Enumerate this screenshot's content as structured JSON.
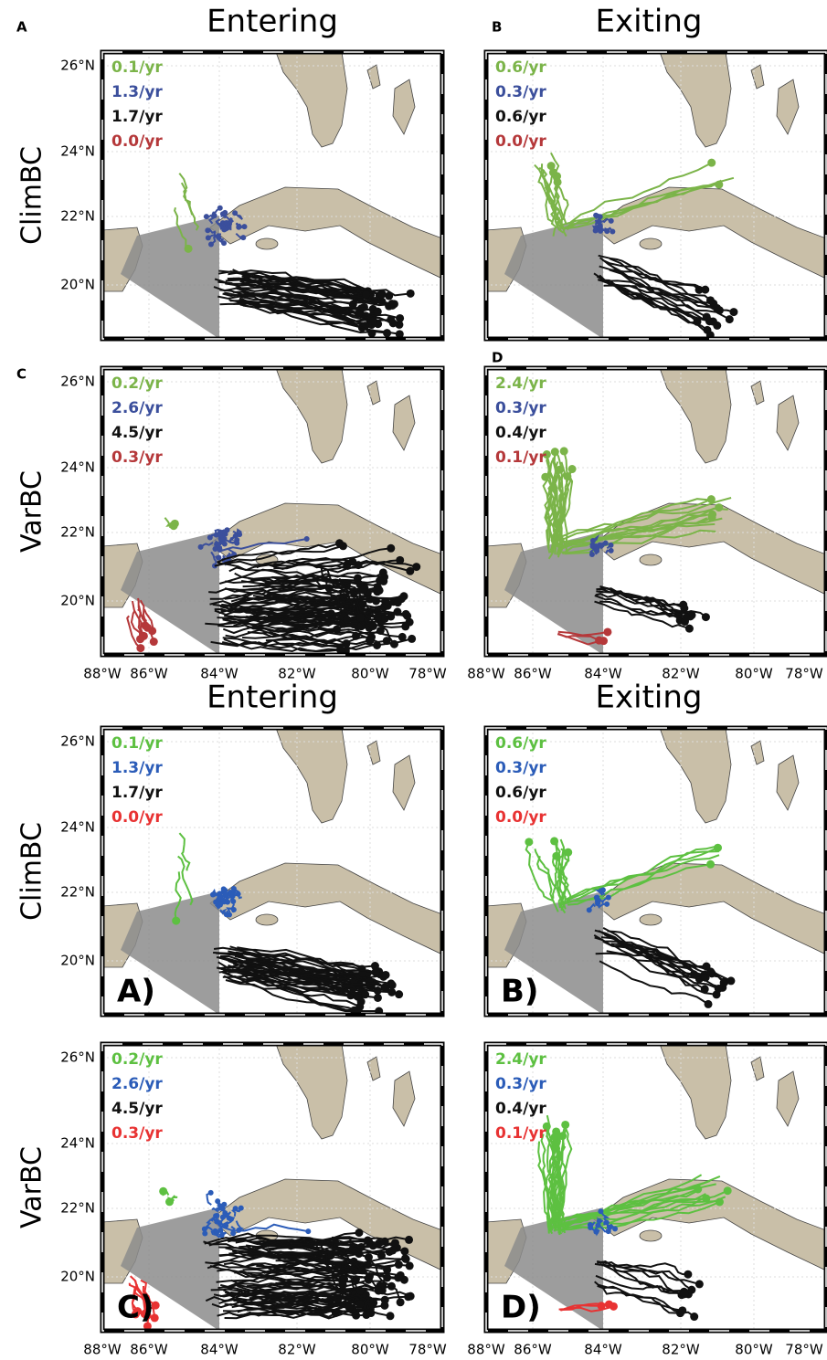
{
  "lat_labels": [
    "26°N",
    "24°N",
    "22°N",
    "20°N"
  ],
  "lon_labels": [
    "88°W",
    "86°W",
    "84°W",
    "82°W",
    "80°W",
    "78°W"
  ],
  "figures": [
    {
      "column_titles": [
        "Entering",
        "Exiting"
      ],
      "row_labels": [
        "ClimBC",
        "VarBC"
      ],
      "rate_colors": [
        "#7bb449",
        "#3b4f9c",
        "#111111",
        "#b5383a"
      ],
      "panels": [
        {
          "label": "A",
          "rates": [
            "0.1/yr",
            "1.3/yr",
            "1.7/yr",
            "0.0/yr"
          ]
        },
        {
          "label": "B",
          "rates": [
            "0.6/yr",
            "0.3/yr",
            "0.6/yr",
            "0.0/yr"
          ]
        },
        {
          "label": "C",
          "rates": [
            "0.2/yr",
            "2.6/yr",
            "4.5/yr",
            "0.3/yr"
          ]
        },
        {
          "label": "D",
          "rates": [
            "2.4/yr",
            "0.3/yr",
            "0.4/yr",
            "0.1/yr"
          ]
        }
      ]
    },
    {
      "column_titles": [
        "Entering",
        "Exiting"
      ],
      "row_labels": [
        "ClimBC",
        "VarBC"
      ],
      "rate_colors": [
        "#5dc041",
        "#2b5cb8",
        "#111111",
        "#e83232"
      ],
      "panels": [
        {
          "label": "A)",
          "rates": [
            "0.1/yr",
            "1.3/yr",
            "1.7/yr",
            "0.0/yr"
          ]
        },
        {
          "label": "B)",
          "rates": [
            "0.6/yr",
            "0.3/yr",
            "0.6/yr",
            "0.0/yr"
          ]
        },
        {
          "label": "C)",
          "rates": [
            "0.2/yr",
            "2.6/yr",
            "4.5/yr",
            "0.3/yr"
          ]
        },
        {
          "label": "D)",
          "rates": [
            "2.4/yr",
            "0.3/yr",
            "0.4/yr",
            "0.1/yr"
          ]
        }
      ]
    }
  ]
}
